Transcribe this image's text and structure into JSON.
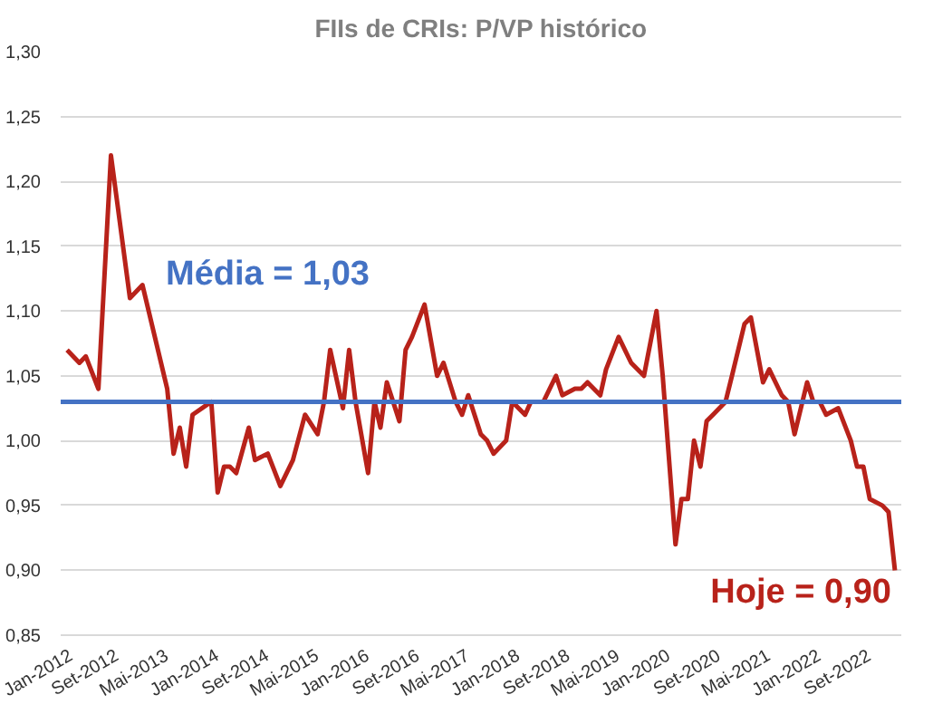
{
  "chart_data": {
    "type": "line",
    "title": "FIIs de CRIs: P/VP histórico",
    "x": [
      "2012-01",
      "2012-03",
      "2012-04",
      "2012-06",
      "2012-08",
      "2012-11",
      "2013-01",
      "2013-05",
      "2013-06",
      "2013-07",
      "2013-08",
      "2013-09",
      "2013-12",
      "2014-01",
      "2014-02",
      "2014-03",
      "2014-04",
      "2014-06",
      "2014-07",
      "2014-09",
      "2014-11",
      "2015-01",
      "2015-03",
      "2015-05",
      "2015-06",
      "2015-07",
      "2015-09",
      "2015-10",
      "2015-11",
      "2016-01",
      "2016-02",
      "2016-03",
      "2016-04",
      "2016-06",
      "2016-07",
      "2016-08",
      "2016-10",
      "2016-12",
      "2017-01",
      "2017-03",
      "2017-04",
      "2017-05",
      "2017-07",
      "2017-08",
      "2017-09",
      "2017-11",
      "2017-12",
      "2018-02",
      "2018-03",
      "2018-05",
      "2018-07",
      "2018-08",
      "2018-10",
      "2018-11",
      "2018-12",
      "2019-02",
      "2019-03",
      "2019-05",
      "2019-07",
      "2019-09",
      "2019-11",
      "2019-12",
      "2020-02",
      "2020-03",
      "2020-04",
      "2020-05",
      "2020-06",
      "2020-07",
      "2020-08",
      "2020-10",
      "2020-11",
      "2021-01",
      "2021-02",
      "2021-04",
      "2021-05",
      "2021-07",
      "2021-08",
      "2021-09",
      "2021-11",
      "2021-12",
      "2022-01",
      "2022-02",
      "2022-04",
      "2022-06",
      "2022-07",
      "2022-08",
      "2022-09",
      "2022-11",
      "2022-12",
      "2023-01"
    ],
    "series": [
      {
        "color": "#b8221a",
        "values": [
          1.07,
          1.06,
          1.065,
          1.04,
          1.22,
          1.11,
          1.12,
          1.04,
          0.99,
          1.01,
          0.98,
          1.02,
          1.03,
          0.96,
          0.98,
          0.98,
          0.975,
          1.01,
          0.985,
          0.99,
          0.965,
          0.985,
          1.02,
          1.005,
          1.03,
          1.07,
          1.025,
          1.07,
          1.03,
          0.975,
          1.03,
          1.01,
          1.045,
          1.015,
          1.07,
          1.08,
          1.105,
          1.05,
          1.06,
          1.03,
          1.02,
          1.035,
          1.005,
          1.0,
          0.99,
          1.0,
          1.03,
          1.02,
          1.03,
          1.03,
          1.05,
          1.035,
          1.04,
          1.04,
          1.045,
          1.035,
          1.055,
          1.08,
          1.06,
          1.05,
          1.1,
          1.05,
          0.92,
          0.955,
          0.955,
          1.0,
          0.98,
          1.015,
          1.02,
          1.03,
          1.05,
          1.09,
          1.095,
          1.045,
          1.055,
          1.035,
          1.03,
          1.005,
          1.045,
          1.03,
          1.03,
          1.02,
          1.025,
          1.0,
          0.98,
          0.98,
          0.955,
          0.95,
          0.945,
          0.9
        ]
      }
    ],
    "xlim": [
      "2011-12",
      "2023-02"
    ],
    "xticks": [
      {
        "value": "2012-01",
        "label": "Jan-2012"
      },
      {
        "value": "2012-09",
        "label": "Set-2012"
      },
      {
        "value": "2013-05",
        "label": "Mai-2013"
      },
      {
        "value": "2014-01",
        "label": "Jan-2014"
      },
      {
        "value": "2014-09",
        "label": "Set-2014"
      },
      {
        "value": "2015-05",
        "label": "Mai-2015"
      },
      {
        "value": "2016-01",
        "label": "Jan-2016"
      },
      {
        "value": "2016-09",
        "label": "Set-2016"
      },
      {
        "value": "2017-05",
        "label": "Mai-2017"
      },
      {
        "value": "2018-01",
        "label": "Jan-2018"
      },
      {
        "value": "2018-09",
        "label": "Set-2018"
      },
      {
        "value": "2019-05",
        "label": "Mai-2019"
      },
      {
        "value": "2020-01",
        "label": "Jan-2020"
      },
      {
        "value": "2020-09",
        "label": "Set-2020"
      },
      {
        "value": "2021-05",
        "label": "Mai-2021"
      },
      {
        "value": "2022-01",
        "label": "Jan-2022"
      },
      {
        "value": "2022-09",
        "label": "Set-2022"
      }
    ],
    "ylim": [
      0.85,
      1.3
    ],
    "yticks": [
      {
        "value": 0.85,
        "label": "0,85"
      },
      {
        "value": 0.9,
        "label": "0,90"
      },
      {
        "value": 0.95,
        "label": "0,95"
      },
      {
        "value": 1.0,
        "label": "1,00"
      },
      {
        "value": 1.05,
        "label": "1,05"
      },
      {
        "value": 1.1,
        "label": "1,10"
      },
      {
        "value": 1.15,
        "label": "1,15"
      },
      {
        "value": 1.2,
        "label": "1,20"
      },
      {
        "value": 1.25,
        "label": "1,25"
      },
      {
        "value": 1.3,
        "label": "1,30"
      }
    ],
    "ref_lines": [
      {
        "axis": "y",
        "value": 1.03,
        "label": "Média = 1,03",
        "color": "#4472c4"
      }
    ],
    "annotations": [
      {
        "text": "Hoje = 0,90",
        "x": "2023-01",
        "y": 0.9
      }
    ],
    "grid": "y",
    "marker": "none",
    "line_style": "solid"
  }
}
